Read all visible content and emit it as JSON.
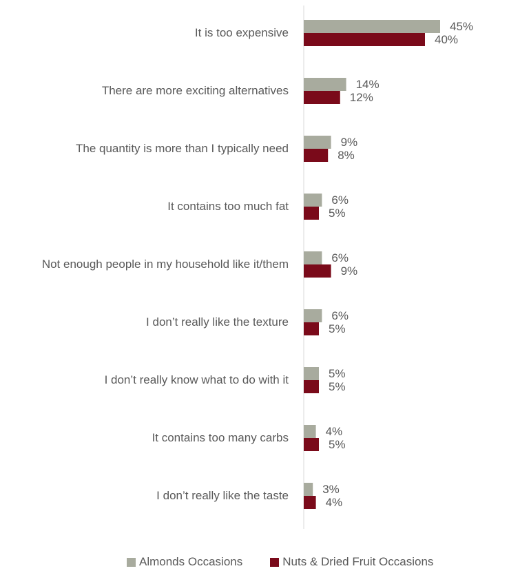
{
  "chart_data": {
    "type": "bar",
    "orientation": "horizontal",
    "categories": [
      "It is too expensive",
      "There are more exciting alternatives",
      "The quantity is more than I typically need",
      "It contains too much fat",
      "Not enough people in my household like it/them",
      "I don’t really like the texture",
      "I don’t really know what to do with it",
      "It contains too many carbs",
      "I don’t really like the taste"
    ],
    "series": [
      {
        "name": "Almonds Occasions",
        "color": "#A8AB9E",
        "values": [
          45,
          14,
          9,
          6,
          6,
          6,
          5,
          4,
          3
        ]
      },
      {
        "name": "Nuts & Dried Fruit Occasions",
        "color": "#7A0A1A",
        "values": [
          40,
          12,
          8,
          5,
          9,
          5,
          5,
          5,
          4
        ]
      }
    ],
    "value_suffix": "%",
    "legend_position": "bottom",
    "grid": false,
    "title": "",
    "xlabel": "",
    "ylabel": ""
  }
}
